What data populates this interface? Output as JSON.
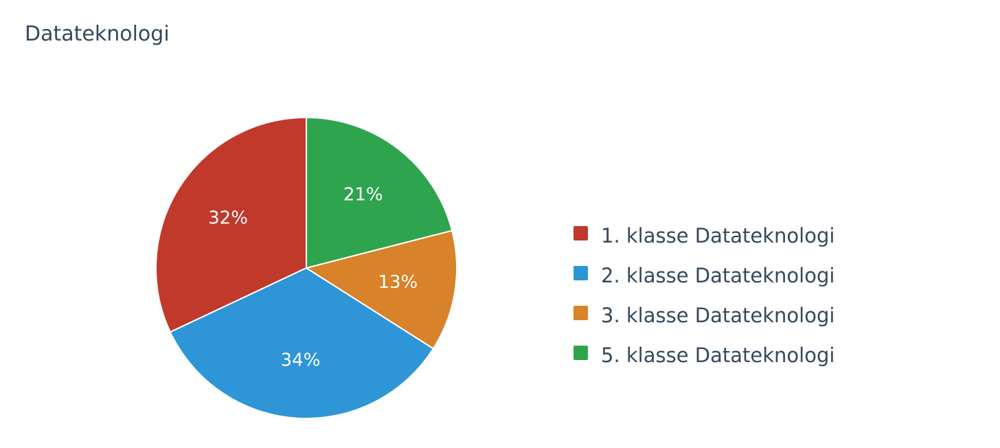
{
  "chart_data": {
    "type": "pie",
    "title": "Datateknologi",
    "categories": [
      "1. klasse Datateknologi",
      "2. klasse Datateknologi",
      "3. klasse Datateknologi",
      "5. klasse Datateknologi"
    ],
    "values": [
      32,
      34,
      13,
      21
    ],
    "value_labels": [
      "32%",
      "34%",
      "13%",
      "21%"
    ],
    "colors": [
      "#c0392b",
      "#2e95d6",
      "#d8822a",
      "#2ea44f"
    ],
    "legend_position": "right",
    "start_angle_deg": 90,
    "direction": "counterclockwise"
  }
}
